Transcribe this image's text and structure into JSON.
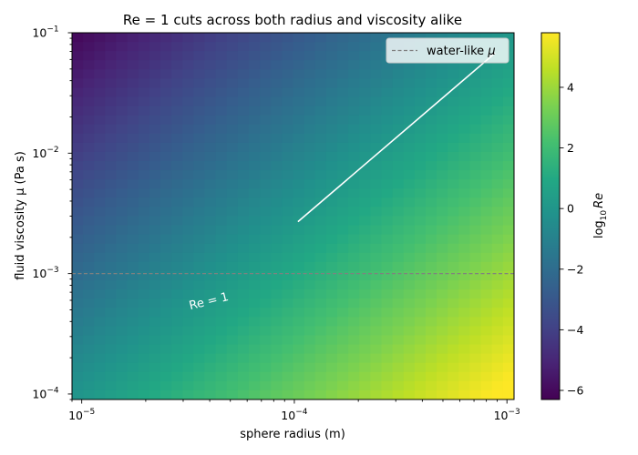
{
  "chart_data": {
    "type": "heatmap",
    "title": "Re = 1 cuts across both radius and viscosity alike",
    "xlabel": "sphere radius (m)",
    "ylabel": "fluid viscosity μ (Pa s)",
    "x_scale": "log",
    "y_scale": "log",
    "xlim": [
      9e-06,
      0.00108
    ],
    "ylim": [
      9e-05,
      0.1
    ],
    "x_ticks": [
      {
        "value": 1e-05,
        "base": "10",
        "exp": "−5"
      },
      {
        "value": 0.0001,
        "base": "10",
        "exp": "−4"
      },
      {
        "value": 0.001,
        "base": "10",
        "exp": "−3"
      }
    ],
    "y_ticks": [
      {
        "value": 0.0001,
        "base": "10",
        "exp": "−4"
      },
      {
        "value": 0.001,
        "base": "10",
        "exp": "−3"
      },
      {
        "value": 0.01,
        "base": "10",
        "exp": "−2"
      },
      {
        "value": 0.1,
        "base": "10",
        "exp": "−1"
      }
    ],
    "grid": false,
    "colormap": "viridis",
    "color_quantity": "log10 Re",
    "color_model": {
      "reference_log10_re": 6.0,
      "radius_exponent": 3,
      "viscosity_exponent": -2
    },
    "colorbar": {
      "label_base": "log",
      "label_sub": "10",
      "label_var": "Re",
      "range": [
        -6.3,
        5.8
      ],
      "ticks": [
        -6,
        -4,
        -2,
        0,
        2,
        4
      ]
    },
    "series": [
      {
        "name": "water-like μ",
        "style": "dashed",
        "color": "#808080",
        "y": 0.001
      },
      {
        "style": "solid",
        "color": "#ffffff",
        "points": [
          [
            0.000104,
            0.0027
          ],
          [
            0.00088,
            0.068
          ]
        ]
      }
    ],
    "annotations": [
      {
        "text": "Re = 1",
        "x": 4e-05,
        "y": 0.00055,
        "color": "#ffffff",
        "rotation": -14
      }
    ],
    "legend": {
      "placement": "top-right",
      "entries": [
        {
          "label": "water-like ",
          "symbol": "μ"
        }
      ]
    }
  }
}
